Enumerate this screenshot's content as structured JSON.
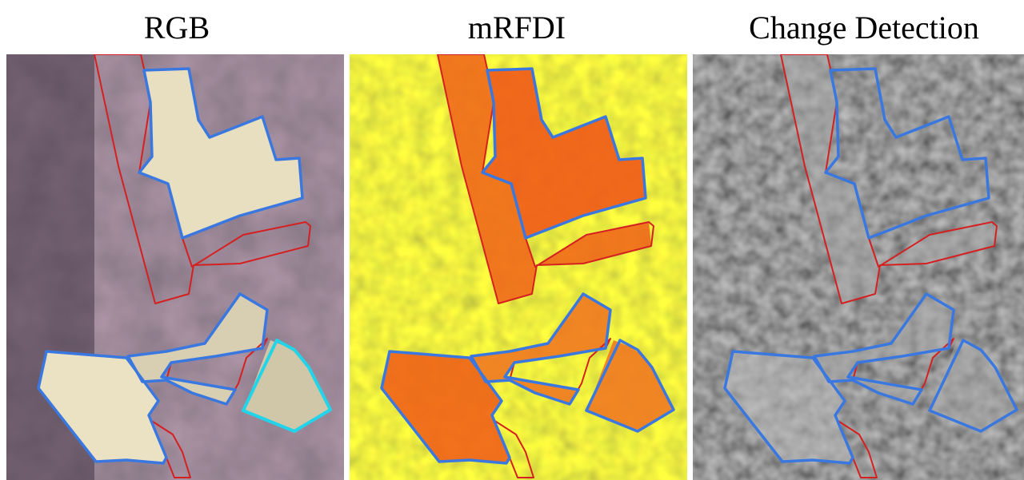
{
  "panels": [
    {
      "title": "RGB"
    },
    {
      "title": "mRFDI"
    },
    {
      "title": "Change Detection"
    }
  ]
}
